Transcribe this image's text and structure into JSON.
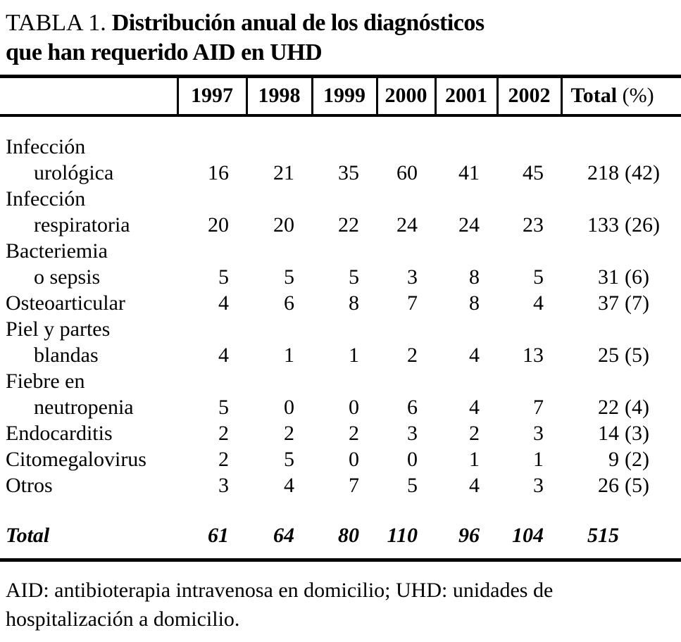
{
  "page": {
    "title": {
      "prefix": "TABLA 1.",
      "line1": "Distribución anual de los diagnósticos",
      "line2": "que han requerido AID en UHD"
    },
    "footnote": "AID: antibioterapia intravenosa en domicilio; UHD: unidades de hospitalización a domicilio."
  },
  "colors": {
    "text": "#000000",
    "background": "#ffffff",
    "rules": "#000000"
  },
  "table": {
    "years": [
      "1997",
      "1998",
      "1999",
      "2000",
      "2001",
      "2002"
    ],
    "total_header": "Total",
    "total_header_pct": "(%)",
    "rows": [
      {
        "label_lines": [
          "Infección",
          "urológica"
        ],
        "values": [
          16,
          21,
          35,
          60,
          41,
          45
        ],
        "total": 218,
        "pct": 42
      },
      {
        "label_lines": [
          "Infección",
          "respiratoria"
        ],
        "values": [
          20,
          20,
          22,
          24,
          24,
          23
        ],
        "total": 133,
        "pct": 26
      },
      {
        "label_lines": [
          "Bacteriemia",
          "o sepsis"
        ],
        "values": [
          5,
          5,
          5,
          3,
          8,
          5
        ],
        "total": 31,
        "pct": 6
      },
      {
        "label_lines": [
          "Osteoarticular"
        ],
        "values": [
          4,
          6,
          8,
          7,
          8,
          4
        ],
        "total": 37,
        "pct": 7
      },
      {
        "label_lines": [
          "Piel y partes",
          "blandas"
        ],
        "values": [
          4,
          1,
          1,
          2,
          4,
          13
        ],
        "total": 25,
        "pct": 5
      },
      {
        "label_lines": [
          "Fiebre en",
          "neutropenia"
        ],
        "values": [
          5,
          0,
          0,
          6,
          4,
          7
        ],
        "total": 22,
        "pct": 4
      },
      {
        "label_lines": [
          "Endocarditis"
        ],
        "values": [
          2,
          2,
          2,
          3,
          2,
          3
        ],
        "total": 14,
        "pct": 3
      },
      {
        "label_lines": [
          "Citomegalovirus"
        ],
        "values": [
          2,
          5,
          0,
          0,
          1,
          1
        ],
        "total": 9,
        "pct": 2
      },
      {
        "label_lines": [
          "Otros"
        ],
        "values": [
          3,
          4,
          7,
          5,
          4,
          3
        ],
        "total": 26,
        "pct": 5
      }
    ],
    "total_row": {
      "label": "Total",
      "values": [
        61,
        64,
        80,
        110,
        96,
        104
      ],
      "total": 515
    }
  }
}
